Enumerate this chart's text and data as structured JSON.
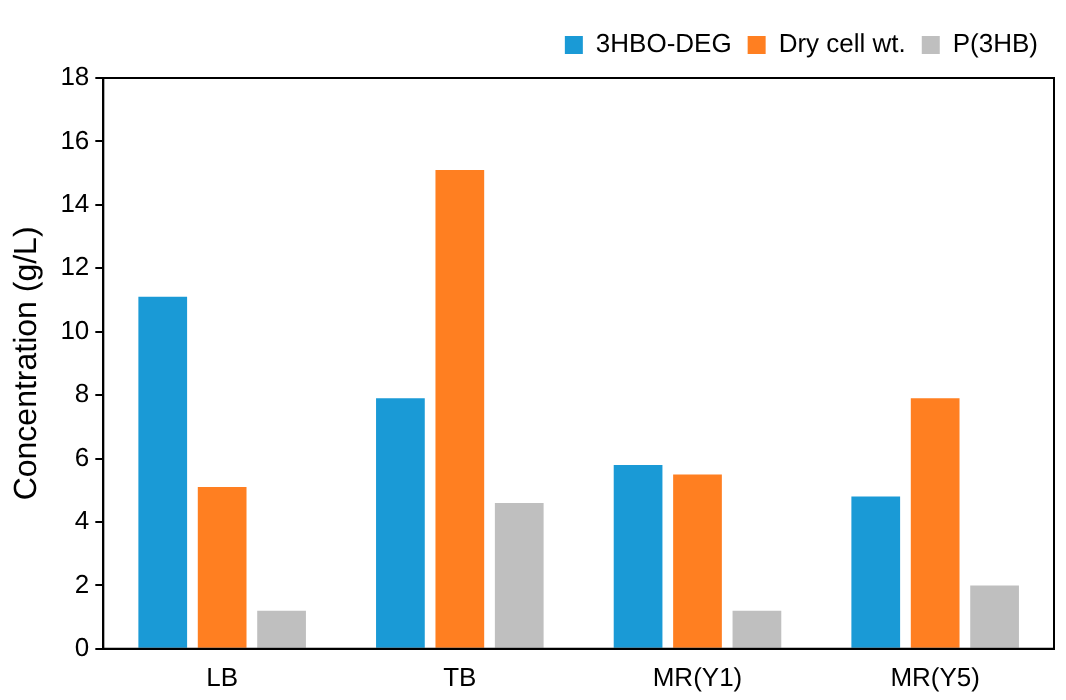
{
  "chart_data": {
    "type": "bar",
    "ylabel": "Concentration (g/L)",
    "categories": [
      "LB",
      "TB",
      "MR(Y1)",
      "MR(Y5)"
    ],
    "series": [
      {
        "name": "3HBO-DEG",
        "color": "#1a9ad6",
        "values": [
          11.1,
          7.9,
          5.8,
          4.8
        ]
      },
      {
        "name": "Dry cell wt.",
        "color": "#ff7f21",
        "values": [
          5.1,
          15.1,
          5.5,
          7.9
        ]
      },
      {
        "name": "P(3HB)",
        "color": "#bfbfbf",
        "values": [
          1.2,
          4.6,
          1.2,
          2.0
        ]
      }
    ],
    "ylim": [
      0,
      18
    ],
    "yticks": [
      0,
      2,
      4,
      6,
      8,
      10,
      12,
      14,
      16,
      18
    ],
    "grid": false,
    "legend": "top right"
  }
}
